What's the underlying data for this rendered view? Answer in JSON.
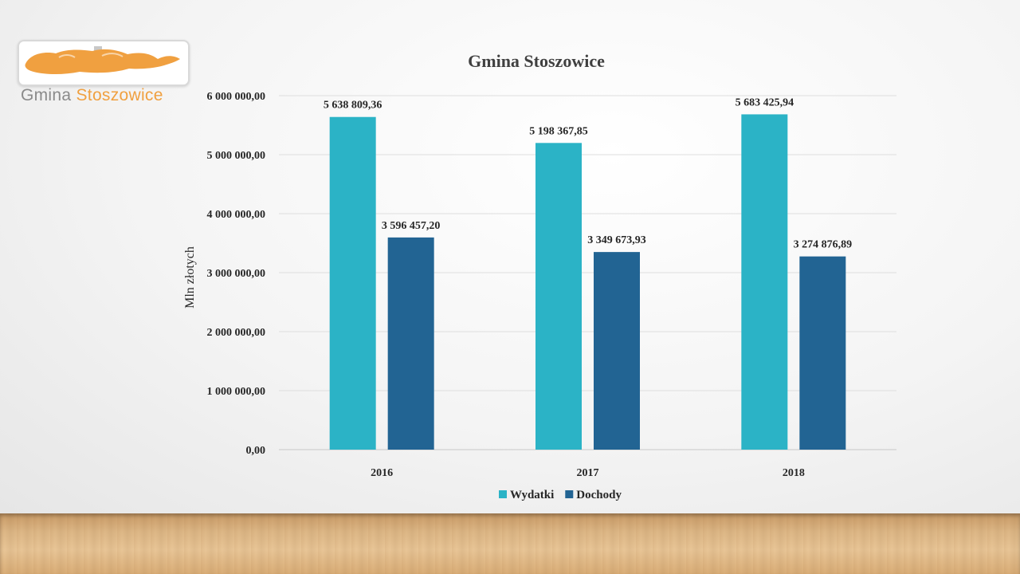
{
  "logo": {
    "text_part1": "Gmina ",
    "text_part2": "Stoszowice",
    "accent_color": "#f0a040"
  },
  "chart_data": {
    "type": "bar",
    "title": "Gmina Stoszowice",
    "ylabel": "Mln złotych",
    "xlabel": "",
    "categories": [
      "2016",
      "2017",
      "2018"
    ],
    "series": [
      {
        "name": "Wydatki",
        "color": "#2bb3c6",
        "values": [
          5638809.36,
          5198367.85,
          5683425.94
        ],
        "labels": [
          "5 638 809,36",
          "5 198 367,85",
          "5 683 425,94"
        ]
      },
      {
        "name": "Dochody",
        "color": "#226493",
        "values": [
          3596457.2,
          3349673.93,
          3274876.89
        ],
        "labels": [
          "3 596 457,20",
          "3 349 673,93",
          "3 274 876,89"
        ]
      }
    ],
    "ylim": [
      0,
      6000000
    ],
    "yticks": [
      0,
      1000000,
      2000000,
      3000000,
      4000000,
      5000000,
      6000000
    ],
    "ytick_labels": [
      "0,00",
      "1 000 000,00",
      "2 000 000,00",
      "3 000 000,00",
      "4 000 000,00",
      "5 000 000,00",
      "6 000 000,00"
    ],
    "grid": true,
    "legend_position": "bottom"
  }
}
